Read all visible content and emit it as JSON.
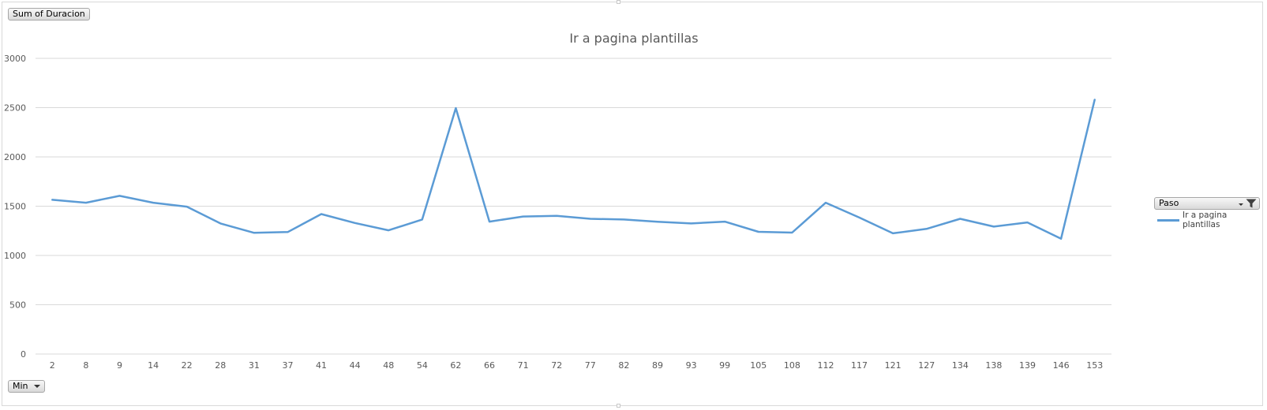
{
  "buttons": {
    "value_field": "Sum of Duracion",
    "axis_field": "Min",
    "legend_field": "Paso"
  },
  "colors": {
    "series": "#5b9bd5",
    "gridline": "#d9d9d9",
    "axis_text": "#595959",
    "title_text": "#595959"
  },
  "icons": {
    "filter": "funnel-icon",
    "dropdown": "chevron-down-icon"
  },
  "chart_data": {
    "type": "line",
    "title": "Ir a pagina plantillas",
    "xlabel": "",
    "ylabel": "",
    "ylim": [
      0,
      3000
    ],
    "yticks": [
      0,
      500,
      1000,
      1500,
      2000,
      2500,
      3000
    ],
    "grid": true,
    "legend_position": "right",
    "categories": [
      "2",
      "8",
      "9",
      "14",
      "22",
      "28",
      "31",
      "37",
      "41",
      "44",
      "48",
      "54",
      "62",
      "66",
      "71",
      "72",
      "77",
      "82",
      "89",
      "93",
      "99",
      "105",
      "108",
      "112",
      "117",
      "121",
      "127",
      "134",
      "138",
      "139",
      "146",
      "153"
    ],
    "series": [
      {
        "name": "Ir a pagina plantillas",
        "values": [
          1565,
          1535,
          1605,
          1535,
          1495,
          1325,
          1230,
          1238,
          1420,
          1330,
          1255,
          1365,
          2495,
          1343,
          1395,
          1402,
          1372,
          1365,
          1342,
          1325,
          1343,
          1240,
          1232,
          1535,
          1385,
          1225,
          1270,
          1372,
          1293,
          1335,
          1170,
          2580
        ]
      }
    ]
  }
}
